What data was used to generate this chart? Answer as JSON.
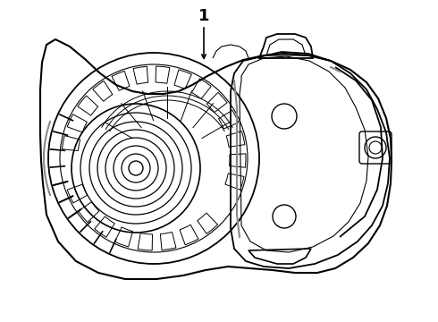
{
  "background_color": "#ffffff",
  "line_color": "#000000",
  "gray_color": "#888888",
  "line_width": 1.0,
  "label_text": "1",
  "fig_width": 4.9,
  "fig_height": 3.6,
  "dpi": 100
}
